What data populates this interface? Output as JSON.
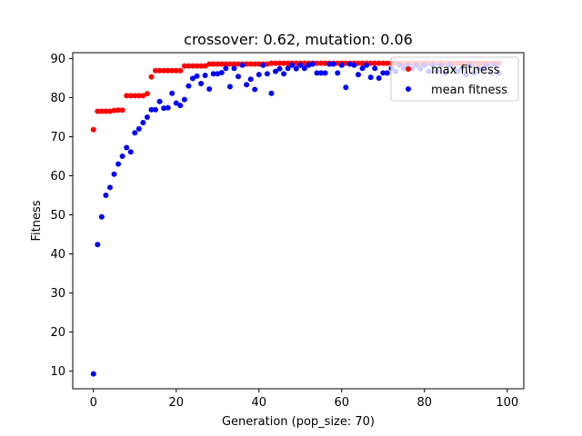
{
  "chart_data": {
    "type": "scatter",
    "title": "crossover: 0.62, mutation: 0.06",
    "xlabel": "Generation (pop_size: 70)",
    "ylabel": "Fitness",
    "xlim": [
      -5,
      104
    ],
    "ylim": [
      5.5,
      91.5
    ],
    "xticks": [
      0,
      20,
      40,
      60,
      80,
      100
    ],
    "yticks": [
      10,
      20,
      30,
      40,
      50,
      60,
      70,
      80,
      90
    ],
    "grid": false,
    "legend_position": "top-right",
    "series": [
      {
        "name": "max fitness",
        "color": "#ff0000",
        "x": [
          0,
          1,
          2,
          3,
          4,
          5,
          6,
          7,
          8,
          9,
          10,
          11,
          12,
          13,
          14,
          15,
          16,
          17,
          18,
          19,
          20,
          21,
          22,
          23,
          24,
          25,
          26,
          27,
          28,
          29,
          30,
          31,
          32,
          33,
          34,
          35,
          36,
          37,
          38,
          39,
          40,
          41,
          42,
          43,
          44,
          45,
          46,
          47,
          48,
          49,
          50,
          51,
          52,
          53,
          54,
          55,
          56,
          57,
          58,
          59,
          60,
          61,
          62,
          63,
          64,
          65,
          66,
          67,
          68,
          69,
          70,
          71,
          72,
          73,
          74,
          75,
          76,
          77,
          78,
          79,
          80,
          81,
          82,
          83,
          84,
          85,
          86,
          87,
          88,
          89,
          90,
          91,
          92,
          93,
          94,
          95,
          96,
          97,
          98
        ],
        "y": [
          71.8,
          76.5,
          76.5,
          76.5,
          76.5,
          76.7,
          76.8,
          76.8,
          80.5,
          80.5,
          80.5,
          80.5,
          80.5,
          81,
          85.3,
          86.9,
          86.9,
          86.9,
          86.9,
          86.9,
          86.9,
          86.9,
          88.1,
          88.1,
          88.1,
          88.1,
          88.1,
          88.1,
          88.6,
          88.6,
          88.6,
          88.6,
          88.6,
          88.6,
          88.6,
          88.6,
          88.6,
          88.6,
          88.6,
          88.6,
          88.6,
          88.6,
          88.6,
          88.8,
          88.8,
          88.8,
          88.8,
          88.8,
          88.8,
          88.8,
          88.8,
          88.8,
          88.8,
          88.8,
          88.8,
          88.8,
          88.8,
          88.8,
          88.8,
          88.8,
          88.8,
          88.8,
          88.8,
          88.8,
          88.8,
          88.8,
          88.8,
          88.8,
          88.8,
          88.8,
          88.8,
          88.8,
          88.8,
          88.8,
          88.8,
          88.8,
          88.8,
          88.8,
          88.8,
          88.8,
          88.8,
          88.8,
          88.8,
          88.8,
          88.8,
          88.8,
          88.8,
          88.8,
          88.8,
          88.8,
          88.8,
          88.8,
          88.8,
          88.8,
          88.8,
          88.8,
          88.8,
          88.8,
          88.8
        ]
      },
      {
        "name": "mean fitness",
        "color": "#0000ff",
        "x": [
          0,
          1,
          2,
          3,
          4,
          5,
          6,
          7,
          8,
          9,
          10,
          11,
          12,
          13,
          14,
          15,
          16,
          17,
          18,
          19,
          20,
          21,
          22,
          23,
          24,
          25,
          26,
          27,
          28,
          29,
          30,
          31,
          32,
          33,
          34,
          35,
          36,
          37,
          38,
          39,
          40,
          41,
          42,
          43,
          44,
          45,
          46,
          47,
          48,
          49,
          50,
          51,
          52,
          53,
          54,
          55,
          56,
          57,
          58,
          59,
          60,
          61,
          62,
          63,
          64,
          65,
          66,
          67,
          68,
          69,
          70,
          71,
          72,
          73,
          74,
          75,
          76,
          77,
          78,
          79,
          80,
          81,
          82,
          83,
          84,
          85,
          86,
          87,
          88,
          89,
          90,
          91,
          92,
          93,
          94,
          95,
          96,
          97,
          98
        ],
        "y": [
          9.3,
          42.4,
          49.5,
          55,
          57,
          60.4,
          63,
          65,
          67.2,
          66.1,
          71,
          72,
          73.6,
          75,
          76.9,
          76.9,
          79,
          77.3,
          77.4,
          81.1,
          78.6,
          78,
          79.5,
          83,
          84.9,
          85.5,
          83.6,
          85.7,
          82.2,
          86.1,
          86.1,
          86.4,
          87.5,
          82.8,
          87.5,
          85.4,
          88.3,
          83.3,
          84.7,
          82.1,
          85.9,
          88.3,
          86.1,
          81.1,
          86.7,
          87.4,
          86.1,
          87.5,
          88.3,
          87.4,
          88.3,
          87.5,
          88.3,
          88.6,
          86.3,
          86.3,
          86.3,
          88.6,
          88.6,
          86.3,
          88.3,
          82.6,
          88.6,
          88.3,
          85.9,
          87.5,
          88.3,
          85.2,
          87.5,
          85.0,
          86.3,
          86.3,
          87.5,
          86.7,
          88.3,
          87.5,
          88.3,
          87.4,
          88.3,
          87.4,
          88.3,
          86.7,
          88.3,
          86.7,
          88.3,
          86.3,
          88.3,
          87.4,
          86.7,
          87.5,
          85.9,
          88.3,
          86.3,
          87.5,
          87.4,
          88.3,
          86.3,
          88.3,
          86.3
        ]
      }
    ]
  }
}
